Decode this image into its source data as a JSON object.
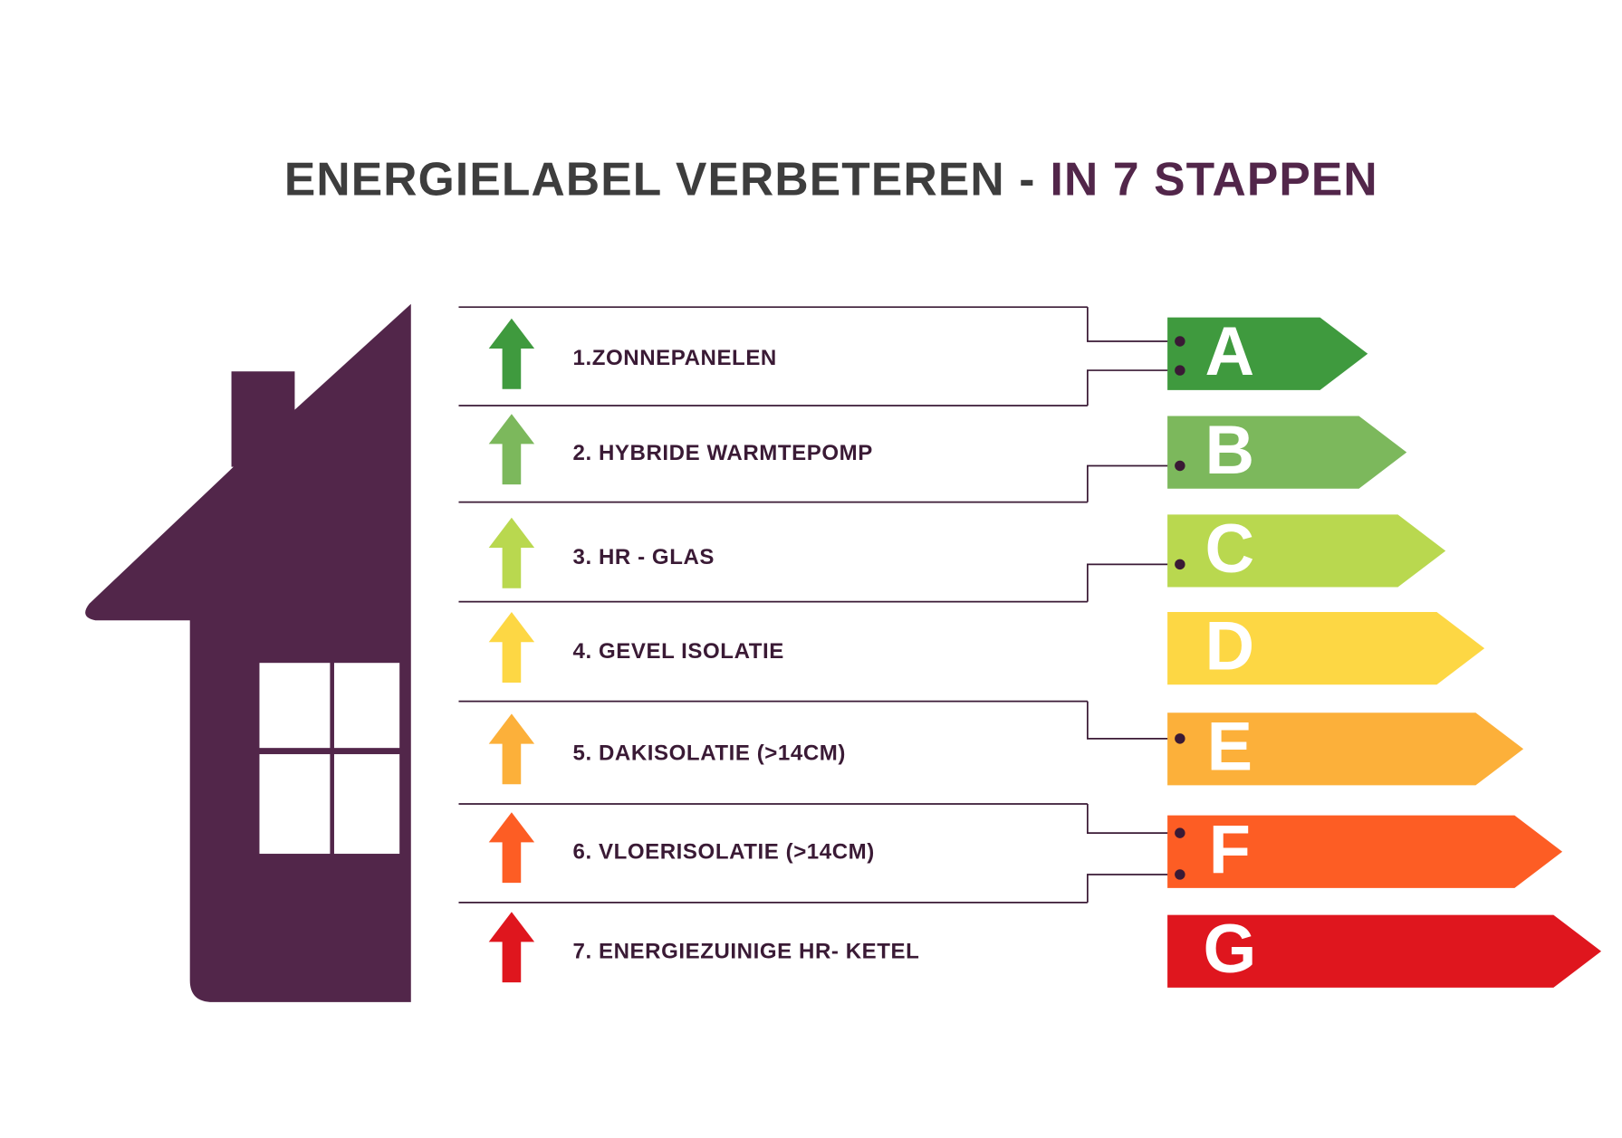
{
  "header": {
    "title_main": "ENERGIELABEL VERBETEREN -",
    "title_accent": "IN 7 STAPPEN"
  },
  "steps": [
    {
      "text": "1.ZONNEPANELEN",
      "color": "#3f9a3e"
    },
    {
      "text": "2. HYBRIDE WARMTEPOMP",
      "color": "#7cb85c"
    },
    {
      "text": "3. HR - GLAS",
      "color": "#b9d84f"
    },
    {
      "text": "4. GEVEL ISOLATIE",
      "color": "#fdd744"
    },
    {
      "text": "5. DAKISOLATIE (>14CM)",
      "color": "#fcb03a"
    },
    {
      "text": "6. VLOERISOLATIE (>14CM)",
      "color": "#fd5d24"
    },
    {
      "text": "7. ENERGIEZUINIGE HR- KETEL",
      "color": "#df161e"
    }
  ],
  "labels": [
    {
      "letter": "A",
      "color": "#3f9a3e"
    },
    {
      "letter": "B",
      "color": "#7cb85c"
    },
    {
      "letter": "C",
      "color": "#b9d84f"
    },
    {
      "letter": "D",
      "color": "#fdd744"
    },
    {
      "letter": "E",
      "color": "#fcb03a"
    },
    {
      "letter": "F",
      "color": "#fd5d24"
    },
    {
      "letter": "G",
      "color": "#df161e"
    }
  ]
}
